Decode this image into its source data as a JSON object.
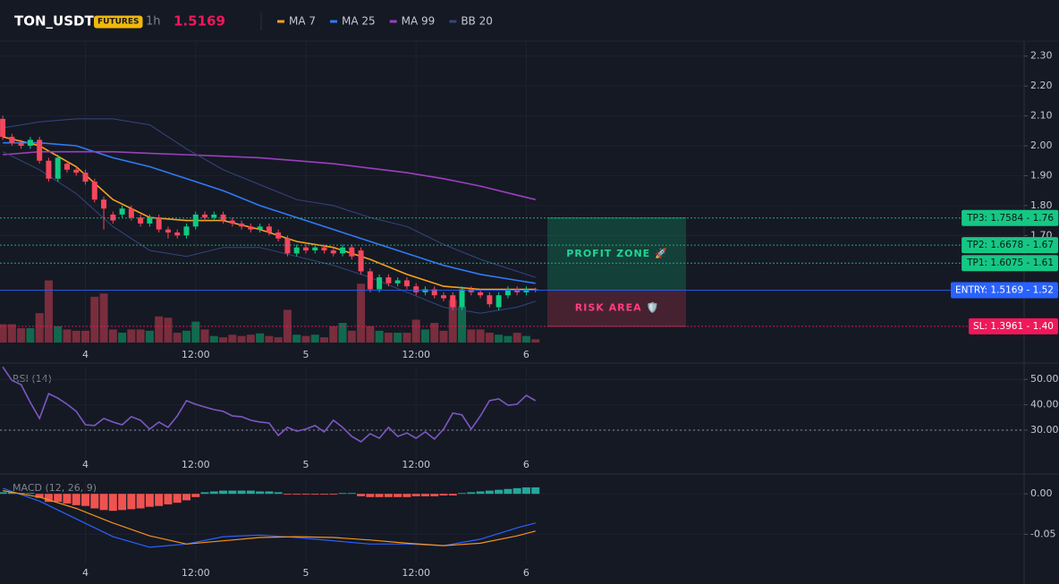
{
  "chart_data": [
    {
      "type": "candlestick",
      "title": "TON_USDT",
      "badge": "FUTURES",
      "interval": "1h",
      "last_price": 1.5169,
      "up_color": "#0ecb81",
      "down_color": "#f6465d",
      "x": [
        0,
        1,
        2,
        3,
        4,
        5,
        6,
        7,
        8,
        9,
        10,
        11,
        12,
        13,
        14,
        15,
        16,
        17,
        18,
        19,
        20,
        21,
        22,
        23,
        24,
        25,
        26,
        27,
        28,
        29,
        30,
        31,
        32,
        33,
        34,
        35,
        36,
        37,
        38,
        39,
        40,
        41,
        42,
        43,
        44,
        45,
        46,
        47,
        48,
        49,
        50,
        51,
        52,
        53,
        54,
        55,
        56,
        57,
        58
      ],
      "open": [
        2.09,
        2.03,
        2.01,
        2.0,
        2.02,
        1.95,
        1.89,
        1.94,
        1.92,
        1.91,
        1.88,
        1.82,
        1.77,
        1.77,
        1.79,
        1.76,
        1.74,
        1.76,
        1.72,
        1.71,
        1.7,
        1.73,
        1.77,
        1.76,
        1.77,
        1.75,
        1.74,
        1.73,
        1.72,
        1.73,
        1.71,
        1.69,
        1.64,
        1.66,
        1.65,
        1.66,
        1.65,
        1.64,
        1.66,
        1.65,
        1.58,
        1.52,
        1.56,
        1.54,
        1.55,
        1.53,
        1.51,
        1.52,
        1.5,
        1.5,
        1.46,
        1.52,
        1.51,
        1.5,
        1.46,
        1.5,
        1.52,
        1.51,
        1.52
      ],
      "high": [
        2.1,
        2.04,
        2.02,
        2.03,
        2.03,
        1.96,
        1.97,
        1.95,
        1.93,
        1.92,
        1.89,
        1.83,
        1.78,
        1.8,
        1.8,
        1.77,
        1.77,
        1.77,
        1.73,
        1.72,
        1.74,
        1.78,
        1.78,
        1.78,
        1.78,
        1.76,
        1.75,
        1.74,
        1.74,
        1.74,
        1.72,
        1.7,
        1.67,
        1.67,
        1.67,
        1.67,
        1.66,
        1.67,
        1.67,
        1.66,
        1.59,
        1.57,
        1.57,
        1.56,
        1.56,
        1.54,
        1.53,
        1.53,
        1.51,
        1.51,
        1.53,
        1.53,
        1.52,
        1.51,
        1.51,
        1.53,
        1.53,
        1.53,
        1.525
      ],
      "low": [
        2.02,
        2.0,
        1.99,
        1.99,
        1.94,
        1.88,
        1.88,
        1.91,
        1.9,
        1.87,
        1.81,
        1.72,
        1.74,
        1.76,
        1.75,
        1.73,
        1.73,
        1.71,
        1.69,
        1.69,
        1.69,
        1.72,
        1.75,
        1.75,
        1.74,
        1.73,
        1.72,
        1.71,
        1.71,
        1.7,
        1.68,
        1.63,
        1.63,
        1.64,
        1.64,
        1.64,
        1.63,
        1.63,
        1.62,
        1.57,
        1.51,
        1.51,
        1.53,
        1.53,
        1.52,
        1.5,
        1.5,
        1.49,
        1.48,
        1.45,
        1.45,
        1.5,
        1.49,
        1.46,
        1.45,
        1.49,
        1.5,
        1.5,
        1.51
      ],
      "close": [
        2.03,
        2.01,
        2.0,
        2.02,
        1.95,
        1.89,
        1.96,
        1.92,
        1.91,
        1.88,
        1.82,
        1.79,
        1.75,
        1.79,
        1.76,
        1.74,
        1.76,
        1.72,
        1.71,
        1.7,
        1.73,
        1.77,
        1.76,
        1.77,
        1.75,
        1.74,
        1.73,
        1.72,
        1.73,
        1.71,
        1.69,
        1.64,
        1.66,
        1.65,
        1.66,
        1.65,
        1.64,
        1.66,
        1.63,
        1.58,
        1.52,
        1.56,
        1.54,
        1.55,
        1.53,
        1.51,
        1.52,
        1.5,
        1.49,
        1.46,
        1.52,
        1.51,
        1.5,
        1.47,
        1.5,
        1.52,
        1.51,
        1.52,
        1.517
      ],
      "volume": [
        28,
        28,
        22,
        22,
        45,
        95,
        25,
        20,
        18,
        18,
        70,
        75,
        20,
        15,
        20,
        20,
        18,
        40,
        38,
        15,
        18,
        32,
        20,
        10,
        8,
        12,
        10,
        12,
        14,
        10,
        8,
        50,
        12,
        10,
        12,
        8,
        25,
        30,
        18,
        90,
        25,
        18,
        15,
        15,
        15,
        35,
        20,
        30,
        18,
        65,
        55,
        20,
        20,
        15,
        12,
        10,
        15,
        10,
        5
      ],
      "volume_lim": [
        0,
        130
      ],
      "xlim": [
        -0.3,
        111.2
      ],
      "xticks": [
        {
          "value": 9,
          "label": "4"
        },
        {
          "value": 21,
          "label": "12:00"
        },
        {
          "value": 33,
          "label": "5"
        },
        {
          "value": 45,
          "label": "12:00"
        },
        {
          "value": 57,
          "label": "6"
        }
      ],
      "ylim": [
        1.33,
        2.35
      ],
      "yticks": [
        {
          "value": 2.3,
          "label": "2.30"
        },
        {
          "value": 2.2,
          "label": "2.20"
        },
        {
          "value": 2.1,
          "label": "2.10"
        },
        {
          "value": 2.0,
          "label": "2.00"
        },
        {
          "value": 1.9,
          "label": "1.90"
        },
        {
          "value": 1.8,
          "label": "1.80"
        },
        {
          "value": 1.7,
          "label": "1.70"
        }
      ],
      "grid": true,
      "series": [
        {
          "name": "MA 7",
          "color": "#f7a21b",
          "x": [
            0,
            4,
            8,
            12,
            16,
            20,
            24,
            28,
            32,
            36,
            40,
            44,
            48,
            52,
            56,
            58
          ],
          "values": [
            2.03,
            2.0,
            1.93,
            1.82,
            1.76,
            1.75,
            1.75,
            1.72,
            1.68,
            1.66,
            1.62,
            1.57,
            1.53,
            1.52,
            1.52,
            1.52
          ]
        },
        {
          "name": "MA 25",
          "color": "#2f7bf5",
          "x": [
            0,
            4,
            8,
            12,
            16,
            20,
            24,
            28,
            32,
            36,
            40,
            44,
            48,
            52,
            56,
            58
          ],
          "values": [
            2.01,
            2.01,
            2.0,
            1.96,
            1.93,
            1.89,
            1.85,
            1.8,
            1.76,
            1.72,
            1.68,
            1.64,
            1.6,
            1.57,
            1.55,
            1.54
          ]
        },
        {
          "name": "MA 99",
          "color": "#9c3fbf",
          "x": [
            0,
            4,
            8,
            12,
            16,
            20,
            24,
            28,
            32,
            36,
            40,
            44,
            48,
            52,
            56,
            58
          ],
          "values": [
            1.97,
            1.98,
            1.98,
            1.98,
            1.975,
            1.97,
            1.965,
            1.96,
            1.95,
            1.94,
            1.925,
            1.91,
            1.89,
            1.865,
            1.835,
            1.82
          ]
        },
        {
          "name": "BB 20",
          "color": "#34477f",
          "x": [
            0,
            4,
            8,
            12,
            16,
            20,
            24,
            28,
            32,
            36,
            40,
            44,
            48,
            52,
            56,
            58
          ],
          "values": [
            2.06,
            2.08,
            2.09,
            2.09,
            2.07,
            1.99,
            1.92,
            1.87,
            1.82,
            1.8,
            1.76,
            1.73,
            1.67,
            1.62,
            1.58,
            1.56
          ],
          "lower": [
            1.98,
            1.92,
            1.84,
            1.73,
            1.65,
            1.63,
            1.66,
            1.66,
            1.63,
            1.6,
            1.56,
            1.51,
            1.46,
            1.44,
            1.46,
            1.48
          ]
        }
      ],
      "levels": [
        {
          "value": 1.7584,
          "label": "TP3: 1.7584 - 1.76",
          "color": "#16c784",
          "style": "dotted"
        },
        {
          "value": 1.6678,
          "label": "TP2: 1.6678 - 1.67",
          "color": "#16c784",
          "style": "dotted"
        },
        {
          "value": 1.6075,
          "label": "TP1: 1.6075 - 1.61",
          "color": "#16c784",
          "style": "dotted"
        },
        {
          "value": 1.5169,
          "label": "ENTRY: 1.5169 - 1.52",
          "color": "#2962ff",
          "style": "solid"
        },
        {
          "value": 1.3961,
          "label": "SL: 1.3961 - 1.40",
          "color": "#f0185a",
          "style": "dotted"
        }
      ],
      "zones": [
        {
          "label": "PROFIT ZONE 🚀",
          "from": 1.5169,
          "to": 1.7584,
          "color": "#0ecb81",
          "text_color": "#1ed796"
        },
        {
          "label": "RISK AREA 🛡️",
          "from": 1.3961,
          "to": 1.5169,
          "color": "#f6465d",
          "text_color": "#ff3d7f"
        }
      ]
    },
    {
      "type": "line",
      "label": "RSI (14)",
      "color": "#7e57c2",
      "x": [
        0,
        1,
        2,
        3,
        4,
        5,
        6,
        7,
        8,
        9,
        10,
        11,
        12,
        13,
        14,
        15,
        16,
        17,
        18,
        19,
        20,
        21,
        22,
        23,
        24,
        25,
        26,
        27,
        28,
        29,
        30,
        31,
        32,
        33,
        34,
        35,
        36,
        37,
        38,
        39,
        40,
        41,
        42,
        43,
        44,
        45,
        46,
        47,
        48,
        49,
        50,
        51,
        52,
        53,
        54,
        55,
        56,
        57,
        58
      ],
      "values": [
        54.9,
        49.6,
        47.9,
        40.9,
        34.6,
        44.4,
        42.6,
        40.2,
        37.4,
        32.1,
        31.8,
        34.6,
        33.2,
        32.1,
        35.3,
        33.9,
        30.4,
        33.2,
        31.1,
        35.6,
        41.6,
        40.2,
        39.1,
        38.1,
        37.4,
        35.6,
        35.3,
        33.9,
        33.2,
        32.8,
        27.9,
        31.1,
        29.6,
        30.4,
        31.8,
        29.3,
        33.9,
        31.1,
        27.5,
        25.4,
        28.6,
        26.8,
        31.1,
        27.5,
        28.9,
        26.8,
        29.3,
        26.5,
        30.4,
        36.7,
        36.0,
        30.4,
        35.6,
        41.6,
        42.3,
        39.8,
        40.2,
        43.7,
        41.6
      ],
      "reference_line": 30,
      "xlim": [
        -0.3,
        111.2
      ],
      "xticks": [
        {
          "value": 9,
          "label": "4"
        },
        {
          "value": 21,
          "label": "12:00"
        },
        {
          "value": 33,
          "label": "5"
        },
        {
          "value": 45,
          "label": "12:00"
        },
        {
          "value": 57,
          "label": "6"
        }
      ],
      "ylim": [
        18,
        55
      ],
      "yticks": [
        {
          "value": 50,
          "label": "50.00"
        },
        {
          "value": 40,
          "label": "40.00"
        },
        {
          "value": 30,
          "label": "30.00"
        }
      ],
      "grid": true
    },
    {
      "type": "macd",
      "label": "MACD (12, 26, 9)",
      "x": [
        0,
        1,
        2,
        3,
        4,
        5,
        6,
        7,
        8,
        9,
        10,
        11,
        12,
        13,
        14,
        15,
        16,
        17,
        18,
        19,
        20,
        21,
        22,
        23,
        24,
        25,
        26,
        27,
        28,
        29,
        30,
        31,
        32,
        33,
        34,
        35,
        36,
        37,
        38,
        39,
        40,
        41,
        42,
        43,
        44,
        45,
        46,
        47,
        48,
        49,
        50,
        51,
        52,
        53,
        54,
        55,
        56,
        57,
        58
      ],
      "histogram": [
        0.002,
        0.002,
        0.001,
        0.001,
        -0.005,
        -0.01,
        -0.01,
        -0.012,
        -0.014,
        -0.015,
        -0.018,
        -0.02,
        -0.021,
        -0.02,
        -0.019,
        -0.018,
        -0.016,
        -0.015,
        -0.013,
        -0.011,
        -0.008,
        -0.004,
        0.002,
        0.003,
        0.004,
        0.004,
        0.004,
        0.004,
        0.003,
        0.003,
        0.002,
        -0.001,
        -0.001,
        -0.001,
        -0.001,
        -0.001,
        -0.001,
        0.001,
        0.001,
        -0.003,
        -0.004,
        -0.004,
        -0.004,
        -0.004,
        -0.004,
        -0.003,
        -0.003,
        -0.003,
        -0.002,
        -0.002,
        0.001,
        0.002,
        0.003,
        0.004,
        0.005,
        0.006,
        0.007,
        0.008,
        0.008
      ],
      "up_color": "#26a69a",
      "down_color": "#ef5350",
      "series": [
        {
          "color": "#2962ff",
          "x": [
            0,
            4,
            8,
            12,
            16,
            20,
            24,
            28,
            32,
            36,
            40,
            44,
            48,
            52,
            56,
            58
          ],
          "values": [
            0.007,
            -0.009,
            -0.031,
            -0.053,
            -0.066,
            -0.062,
            -0.053,
            -0.051,
            -0.054,
            -0.058,
            -0.062,
            -0.062,
            -0.064,
            -0.056,
            -0.042,
            -0.036
          ]
        },
        {
          "color": "#f7931a",
          "x": [
            0,
            4,
            8,
            12,
            16,
            20,
            24,
            28,
            32,
            36,
            40,
            44,
            48,
            52,
            56,
            58
          ],
          "values": [
            0.004,
            -0.004,
            -0.018,
            -0.036,
            -0.052,
            -0.062,
            -0.058,
            -0.054,
            -0.053,
            -0.054,
            -0.057,
            -0.061,
            -0.064,
            -0.061,
            -0.052,
            -0.046
          ]
        }
      ],
      "xlim": [
        -0.3,
        111.2
      ],
      "xticks": [
        {
          "value": 9,
          "label": "4"
        },
        {
          "value": 21,
          "label": "12:00"
        },
        {
          "value": 33,
          "label": "5"
        },
        {
          "value": 45,
          "label": "12:00"
        },
        {
          "value": 57,
          "label": "6"
        }
      ],
      "ylim": [
        -0.086,
        0.019
      ],
      "yticks": [
        {
          "value": 0,
          "label": "0.00"
        },
        {
          "value": -0.05,
          "label": "-0.05"
        }
      ],
      "grid": true
    }
  ]
}
